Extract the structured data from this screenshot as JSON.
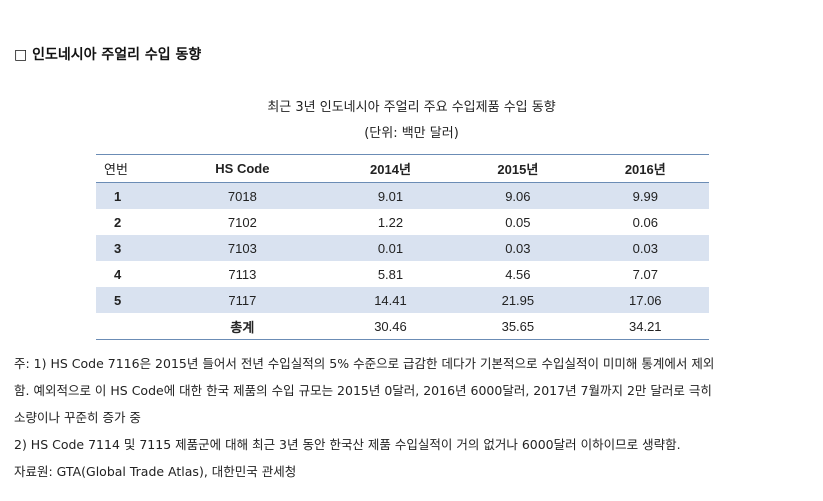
{
  "section_title": "□ 인도네시아 주얼리 수입 동향",
  "table_title": "최근 3년 인도네시아 주얼리 주요 수입제품 수입 동향",
  "table_unit": "(단위: 백만 달러)",
  "table": {
    "headers": {
      "no": "연번",
      "hs_code": "HS Code",
      "y2014": "2014년",
      "y2015": "2015년",
      "y2016": "2016년"
    },
    "rows": [
      {
        "no": "1",
        "hs_code": "7018",
        "y2014": "9.01",
        "y2015": "9.06",
        "y2016": "9.99"
      },
      {
        "no": "2",
        "hs_code": "7102",
        "y2014": "1.22",
        "y2015": "0.05",
        "y2016": "0.06"
      },
      {
        "no": "3",
        "hs_code": "7103",
        "y2014": "0.01",
        "y2015": "0.03",
        "y2016": "0.03"
      },
      {
        "no": "4",
        "hs_code": "7113",
        "y2014": "5.81",
        "y2015": "4.56",
        "y2016": "7.07"
      },
      {
        "no": "5",
        "hs_code": "7117",
        "y2014": "14.41",
        "y2015": "21.95",
        "y2016": "17.06"
      }
    ],
    "total": {
      "label": "총계",
      "y2014": "30.46",
      "y2015": "35.65",
      "y2016": "34.21"
    }
  },
  "notes": {
    "line1": "주: 1) HS Code 7116은 2015년 들어서 전년 수입실적의 5% 수준으로 급감한 데다가 기본적으로 수입실적이 미미해 통계에서 제외",
    "line2": "함. 예외적으로 이  HS Code에 대한 한국 제품의 수입 규모는 2015년 0달러, 2016년 6000달러, 2017년 7월까지 2만 달러로 극히",
    "line3": "소량이나 꾸준히 증가 중",
    "line4": "2) HS Code 7114 및 7115 제품군에 대해 최근 3년 동안 한국산 제품 수입실적이 거의 없거나 6000달러 이하이므로 생략함.",
    "line5": "자료원: GTA(Global Trade Atlas), 대한민국 관세청"
  }
}
